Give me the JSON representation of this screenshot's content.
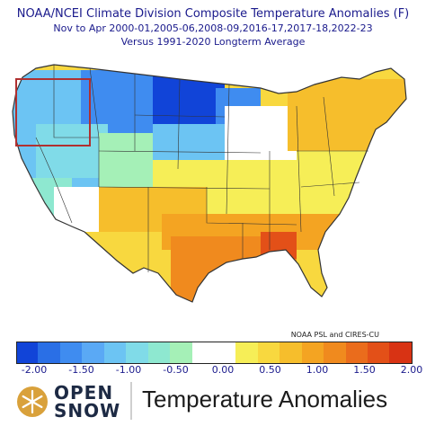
{
  "header": {
    "line1": "NOAA/NCEI Climate Division Composite Temperature Anomalies (F)",
    "line2": "Nov to Apr  2000-01,2005-06,2008-09,2016-17,2017-18,2022-23",
    "line3": "Versus 1991-2020 Longterm Average"
  },
  "credit": "NOAA PSL and CIRES-CU",
  "colorbar": {
    "colors": [
      "#1144d8",
      "#2a6fe6",
      "#3f8cf0",
      "#5aa9f5",
      "#6cc4f3",
      "#80dbe8",
      "#8ee8d0",
      "#a5f0b7",
      "#ffffff",
      "#ffffff",
      "#f6ee57",
      "#f8d83f",
      "#f6be2c",
      "#f4a422",
      "#f08a1e",
      "#ea6c1c",
      "#e35018",
      "#d83314"
    ],
    "tick_labels": [
      "-2.00",
      "-1.50",
      "-1.00",
      "-0.50",
      "0.00",
      "0.50",
      "1.00",
      "1.50",
      "2.00"
    ]
  },
  "footer": {
    "brand_line1": "OPEN",
    "brand_line2": "SNOW",
    "title": "Temperature Anomalies"
  },
  "highlight_box_color": "#b03030",
  "map_colors": {
    "outline": "#333333",
    "deep_blue": "#1144d8",
    "blue": "#3f8cf0",
    "light_blue": "#6cc4f3",
    "cyan": "#80dbe8",
    "teal_green": "#8ee8d0",
    "pale_green": "#a5f0b7",
    "white": "#ffffff",
    "yellow": "#f6ee57",
    "gold": "#f8d83f",
    "orange_light": "#f6be2c",
    "orange": "#f4a422",
    "orange_dark": "#f08a1e",
    "red_orange": "#e35018"
  }
}
